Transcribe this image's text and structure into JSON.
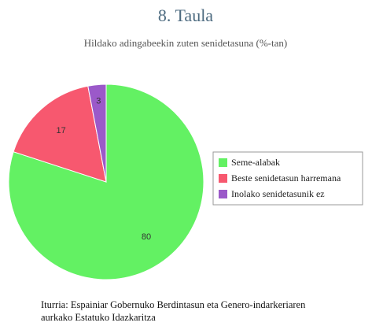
{
  "chart_data": {
    "type": "pie",
    "title": "8. Taula",
    "subtitle": "Hildako adingabeekin zuten senidetasuna (%-tan)",
    "categories": [
      "Seme-alabak",
      "Beste senidetasun harremana",
      "Inolako senidetasunik ez"
    ],
    "values": [
      80,
      17,
      3
    ],
    "colors": [
      "#63f163",
      "#f7586f",
      "#9b59c9"
    ],
    "legend": "right",
    "source": [
      "Iturria: Espainiar Gobernuko Berdintasun eta Genero-indarkeriaren",
      "aurkako Estatuko Idazkaritza"
    ]
  }
}
